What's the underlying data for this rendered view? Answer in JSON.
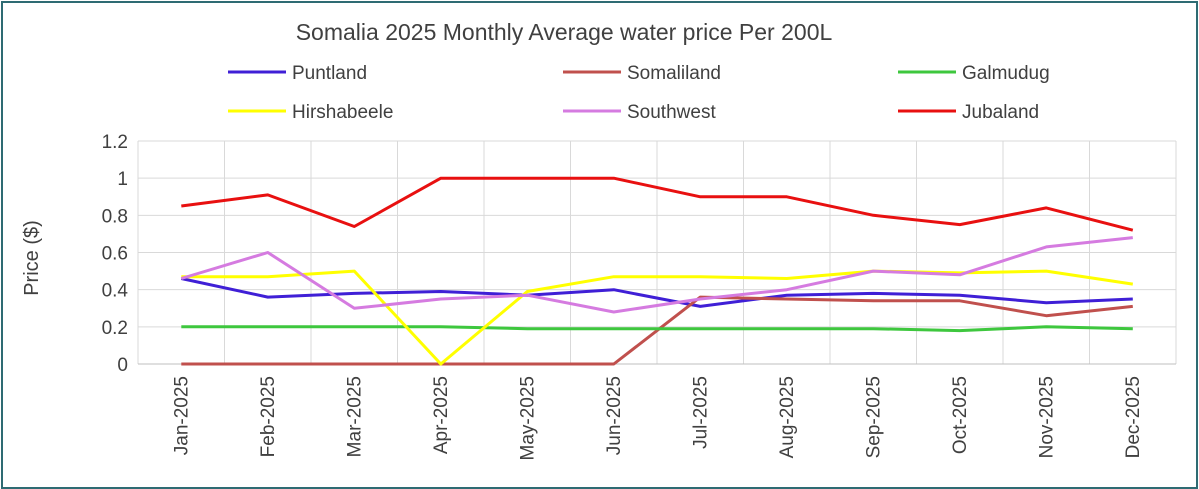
{
  "chart_data": {
    "type": "line",
    "title": "Somalia 2025 Monthly Average water price Per 200L",
    "ylabel": "Price ($)",
    "xlabel": "",
    "ylim": [
      0,
      1.2
    ],
    "yticks": [
      "0",
      "0.2",
      "0.4",
      "0.6",
      "0.8",
      "1",
      "1.2"
    ],
    "grid": true,
    "legend_position": "top",
    "categories": [
      "Jan-2025",
      "Feb-2025",
      "Mar-2025",
      "Apr-2025",
      "May-2025",
      "Jun-2025",
      "Jul-2025",
      "Aug-2025",
      "Sep-2025",
      "Oct-2025",
      "Nov-2025",
      "Dec-2025"
    ],
    "series": [
      {
        "name": "Puntland",
        "color": "#3f1fd6",
        "values": [
          0.46,
          0.36,
          0.38,
          0.39,
          0.37,
          0.4,
          0.31,
          0.37,
          0.38,
          0.37,
          0.33,
          0.35
        ]
      },
      {
        "name": "Somaliland",
        "color": "#c0504d",
        "values": [
          0,
          0,
          0,
          0,
          0,
          0,
          0.36,
          0.35,
          0.34,
          0.34,
          0.26,
          0.31
        ]
      },
      {
        "name": "Galmudug",
        "color": "#3ec73e",
        "values": [
          0.2,
          0.2,
          0.2,
          0.2,
          0.19,
          0.19,
          0.19,
          0.19,
          0.19,
          0.18,
          0.2,
          0.19
        ]
      },
      {
        "name": "Hirshabeele",
        "color": "#ffff00",
        "values": [
          0.47,
          0.47,
          0.5,
          0,
          0.39,
          0.47,
          0.47,
          0.46,
          0.5,
          0.49,
          0.5,
          0.43
        ]
      },
      {
        "name": "Southwest",
        "color": "#d57be0",
        "values": [
          0.46,
          0.6,
          0.3,
          0.35,
          0.37,
          0.28,
          0.35,
          0.4,
          0.5,
          0.48,
          0.63,
          0.68
        ]
      },
      {
        "name": "Jubaland",
        "color": "#e81010",
        "values": [
          0.85,
          0.91,
          0.74,
          1.0,
          1.0,
          1.0,
          0.9,
          0.9,
          0.8,
          0.75,
          0.84,
          0.72
        ]
      }
    ]
  }
}
